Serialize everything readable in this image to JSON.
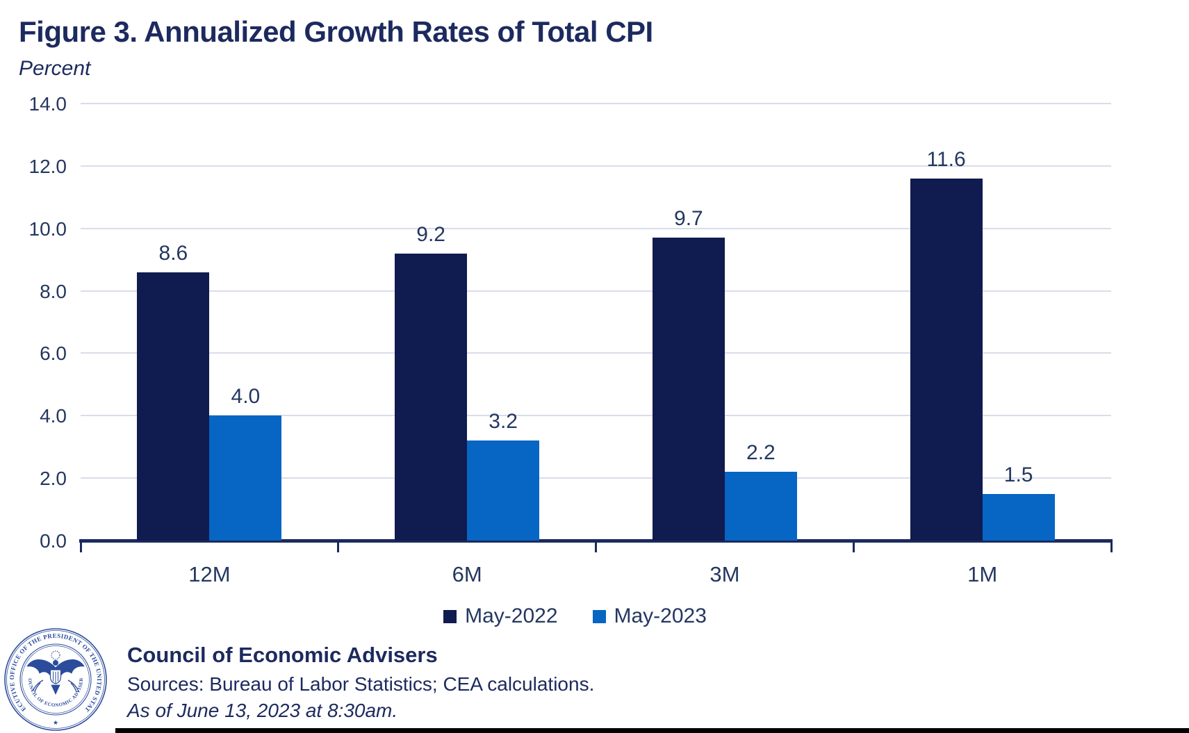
{
  "title": "Figure 3. Annualized Growth Rates of Total CPI",
  "subtitle": "Percent",
  "chart_data": {
    "type": "bar",
    "categories": [
      "12M",
      "6M",
      "3M",
      "1M"
    ],
    "series": [
      {
        "name": "May-2022",
        "color": "#101B4F",
        "values": [
          8.6,
          9.2,
          9.7,
          11.6
        ],
        "labels": [
          "8.6",
          "9.2",
          "9.7",
          "11.6"
        ]
      },
      {
        "name": "May-2023",
        "color": "#0765C3",
        "values": [
          4.0,
          3.2,
          2.2,
          1.5
        ],
        "labels": [
          "4.0",
          "3.2",
          "2.2",
          "1.5"
        ]
      }
    ],
    "ylabel": "Percent",
    "ylim": [
      0,
      14
    ],
    "ytick_step": 2,
    "ytick_labels": [
      "0.0",
      "2.0",
      "4.0",
      "6.0",
      "8.0",
      "10.0",
      "12.0",
      "14.0"
    ],
    "grid": true,
    "legend_position": "bottom"
  },
  "legend": {
    "items": [
      {
        "label": "May-2022",
        "color": "#101B4F"
      },
      {
        "label": "May-2023",
        "color": "#0765C3"
      }
    ]
  },
  "footer": {
    "org": "Council of Economic Advisers",
    "sources": "Sources: Bureau of Labor Statistics; CEA calculations.",
    "as_of": "As of June 13, 2023 at 8:30am."
  },
  "seal": {
    "outer_text": "EXECUTIVE OFFICE OF THE PRESIDENT OF THE UNITED STATES",
    "inner_text": "COUNCIL OF ECONOMIC ADVISERS",
    "bottom_star": "★"
  },
  "colors": {
    "text_navy": "#1C2A5E",
    "tick_navy": "#243760",
    "axis_navy": "#1B2A5E",
    "gridline": "#D9DDE9",
    "bar_navy": "#101B4F",
    "bar_blue": "#0765C3",
    "seal_ink": "#2B4C9B",
    "bottom_rule": "#000000"
  }
}
